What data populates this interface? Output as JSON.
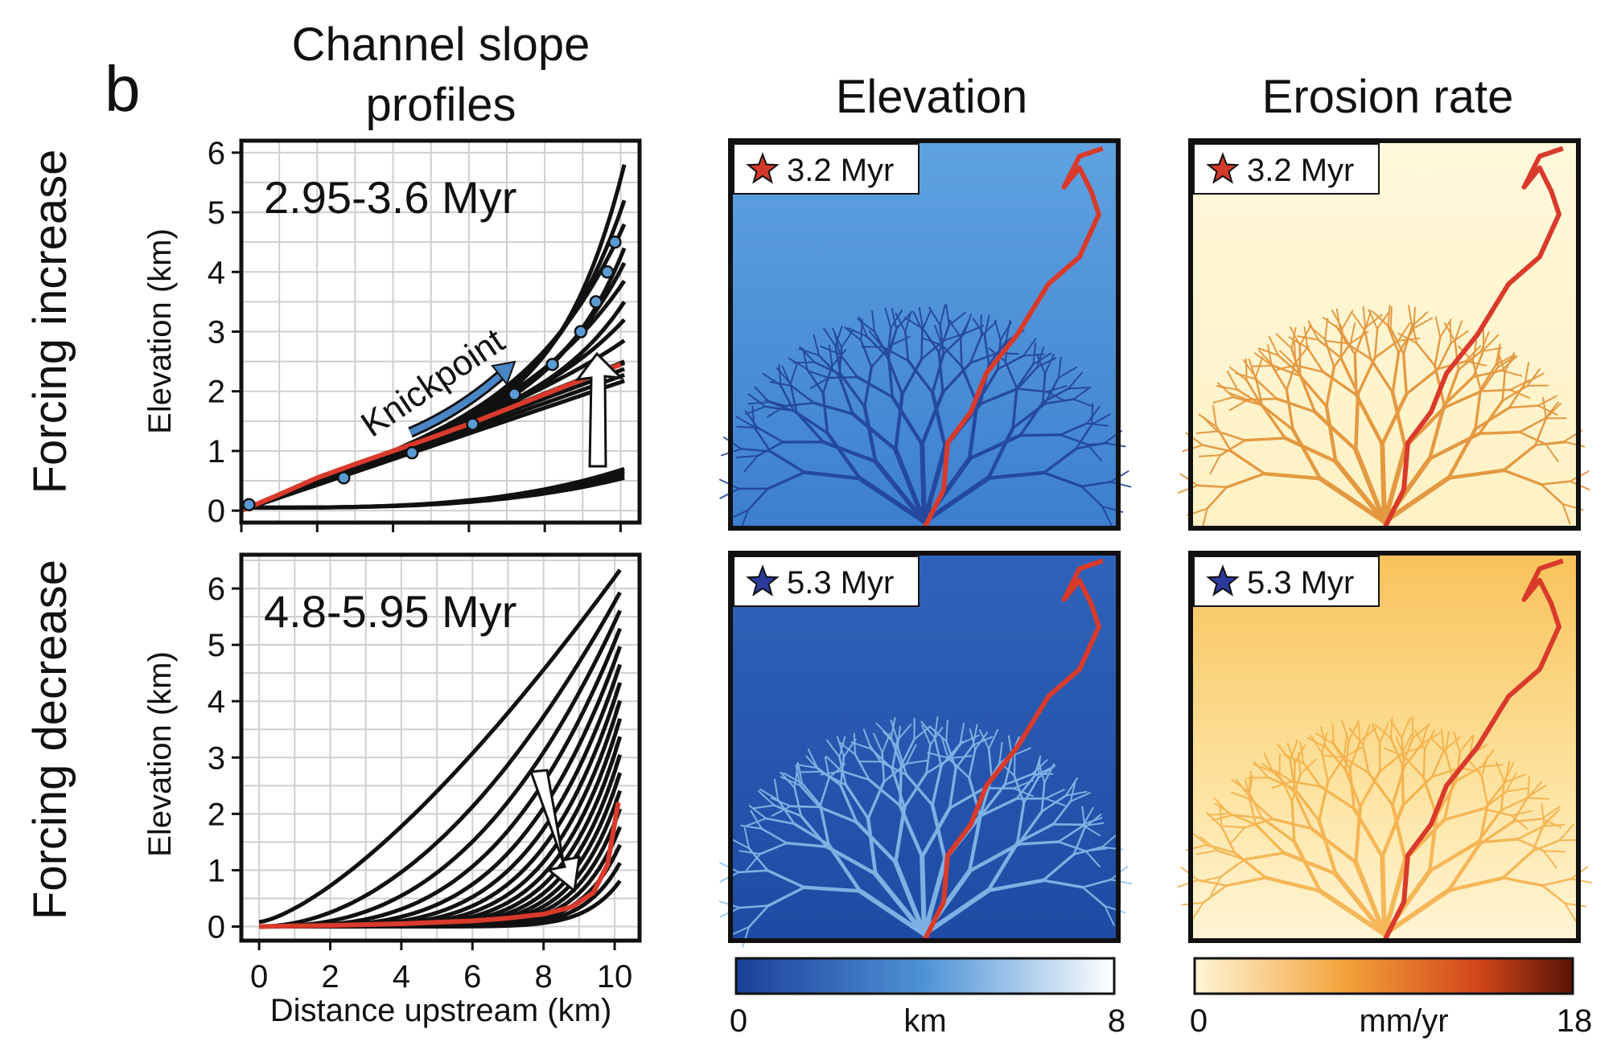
{
  "panel_label": "b",
  "column_titles": {
    "profiles_line1": "Channel slope",
    "profiles_line2": "profiles",
    "elevation": "Elevation",
    "erosion": "Erosion rate"
  },
  "row_labels": {
    "top": "Forcing increase",
    "bottom": "Forcing decrease"
  },
  "colors": {
    "profile_line": "#111111",
    "highlight_profile": "#d93a2b",
    "marker_fill": "#5b9bd5",
    "knickpoint_arrow": "#4a86c5",
    "elevation_low": "#1b3f9a",
    "elevation_mid": "#4f93d6",
    "elevation_high": "#ffffff",
    "erosion_low": "#fff6d6",
    "erosion_mid": "#f3a23a",
    "erosion_high": "#5a1406",
    "star_top": "#d23a2a",
    "star_bottom": "#2b3a9b"
  },
  "chart_data": [
    {
      "type": "line",
      "title": "",
      "time_label": "2.95-3.6 Myr",
      "annotation": "Knickpoint",
      "xlabel": "",
      "ylabel": "Elevation (km)",
      "xlim": [
        0,
        10.5
      ],
      "ylim": [
        -0.2,
        6.2
      ],
      "xticks": [
        0,
        2,
        4,
        6,
        8,
        10
      ],
      "yticks": [
        0,
        1,
        2,
        3,
        4,
        5,
        6
      ],
      "grid": true,
      "highlight": {
        "x": [
          0,
          1,
          2,
          3,
          4,
          5,
          6,
          7,
          8,
          9,
          10
        ],
        "y": [
          0,
          0.27,
          0.55,
          0.78,
          1.0,
          1.22,
          1.45,
          1.7,
          1.95,
          2.2,
          2.45
        ]
      },
      "markers": [
        [
          0.2,
          0.1
        ],
        [
          2.7,
          0.55
        ],
        [
          4.5,
          0.97
        ],
        [
          6.1,
          1.45
        ],
        [
          7.2,
          1.95
        ],
        [
          8.2,
          2.45
        ],
        [
          8.95,
          3.0
        ],
        [
          9.35,
          3.5
        ],
        [
          9.65,
          4.0
        ],
        [
          9.85,
          4.5
        ]
      ]
    },
    {
      "type": "line",
      "title": "",
      "time_label": "4.8-5.95 Myr",
      "xlabel": "Distance upstream (km)",
      "ylabel": "Elevation (km)",
      "xlim": [
        -0.5,
        10.7
      ],
      "ylim": [
        -0.25,
        6.6
      ],
      "xticks": [
        0,
        2,
        4,
        6,
        8,
        10
      ],
      "yticks": [
        0,
        1,
        2,
        3,
        4,
        5,
        6
      ],
      "grid": true,
      "highlight": {
        "x": [
          0,
          2,
          4,
          6,
          7,
          8,
          8.8,
          9.4,
          9.8,
          10.1
        ],
        "y": [
          0,
          0.02,
          0.05,
          0.1,
          0.15,
          0.22,
          0.35,
          0.6,
          1.1,
          2.2
        ]
      }
    }
  ],
  "maps": [
    {
      "badge": "3.2 Myr",
      "kind": "elevation"
    },
    {
      "badge": "3.2 Myr",
      "kind": "erosion"
    },
    {
      "badge": "5.3 Myr",
      "kind": "elevation"
    },
    {
      "badge": "5.3 Myr",
      "kind": "erosion"
    }
  ],
  "colorbars": {
    "elevation": {
      "min": "0",
      "unit": "km",
      "max": "8"
    },
    "erosion": {
      "min": "0",
      "unit": "mm/yr",
      "max": "18"
    }
  }
}
